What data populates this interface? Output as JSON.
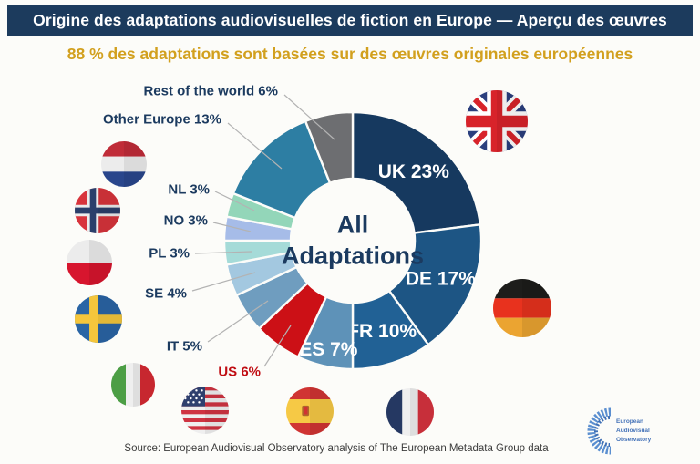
{
  "header": {
    "title": "Origine des adaptations audiovisuelles de fiction en Europe — Aperçu des œuvres",
    "bg_color": "#1c3b5d",
    "text_color": "#ffffff"
  },
  "subtitle": {
    "text": "88 % des adaptations sont basées sur des œuvres originales européennes",
    "color": "#d2a01e"
  },
  "chart_data": {
    "type": "pie",
    "donut": true,
    "title": "All Adaptations",
    "center_label_line1": "All",
    "center_label_line2": "Adaptations",
    "start_angle_deg": 0,
    "direction": "clockwise",
    "units": "percent",
    "segments": [
      {
        "label": "UK",
        "value": 23,
        "display": "UK 23%",
        "color": "#16395f",
        "label_pos": "inside",
        "label_r": 101
      },
      {
        "label": "DE",
        "value": 17,
        "display": "DE 17%",
        "color": "#1d5584",
        "label_pos": "inside",
        "label_r": 105
      },
      {
        "label": "FR",
        "value": 10,
        "display": "FR 10%",
        "color": "#216195",
        "label_pos": "inside",
        "label_r": 104
      },
      {
        "label": "ES",
        "value": 7,
        "display": "ES 7%",
        "color": "#5e92b8",
        "label_pos": "inside",
        "label_r": 122
      },
      {
        "label": "US",
        "value": 6,
        "display": "US 6%",
        "color": "#cc1016",
        "label_pos": "outside",
        "label_color": "#c00d13"
      },
      {
        "label": "IT",
        "value": 5,
        "display": "IT 5%",
        "color": "#6f9dbf",
        "label_pos": "outside"
      },
      {
        "label": "SE",
        "value": 4,
        "display": "SE 4%",
        "color": "#a3c8e0",
        "label_pos": "outside"
      },
      {
        "label": "PL",
        "value": 3,
        "display": "PL 3%",
        "color": "#a5dbd8",
        "label_pos": "outside"
      },
      {
        "label": "NO",
        "value": 3,
        "display": "NO 3%",
        "color": "#a6bce8",
        "label_pos": "outside"
      },
      {
        "label": "NL",
        "value": 3,
        "display": "NL 3%",
        "color": "#93d6b9",
        "label_pos": "outside"
      },
      {
        "label": "Other Europe",
        "value": 13,
        "display": "Other Europe 13%",
        "color": "#2d7ea3",
        "label_pos": "outside"
      },
      {
        "label": "Rest of the world",
        "value": 6,
        "display": "Rest of the world 6%",
        "color": "#6d6e71",
        "label_pos": "outside"
      }
    ]
  },
  "flags": [
    "uk-flag-icon",
    "de-flag-icon",
    "nl-flag-icon",
    "no-flag-icon",
    "pl-flag-icon",
    "se-flag-icon",
    "it-flag-icon",
    "us-flag-icon",
    "es-flag-icon",
    "fr-flag-icon"
  ],
  "source": {
    "text": "Source: European Audiovisual Observatory analysis of The European Metadata Group data"
  },
  "logo": {
    "text": [
      "European",
      "Audiovisual",
      "Observatory"
    ]
  }
}
